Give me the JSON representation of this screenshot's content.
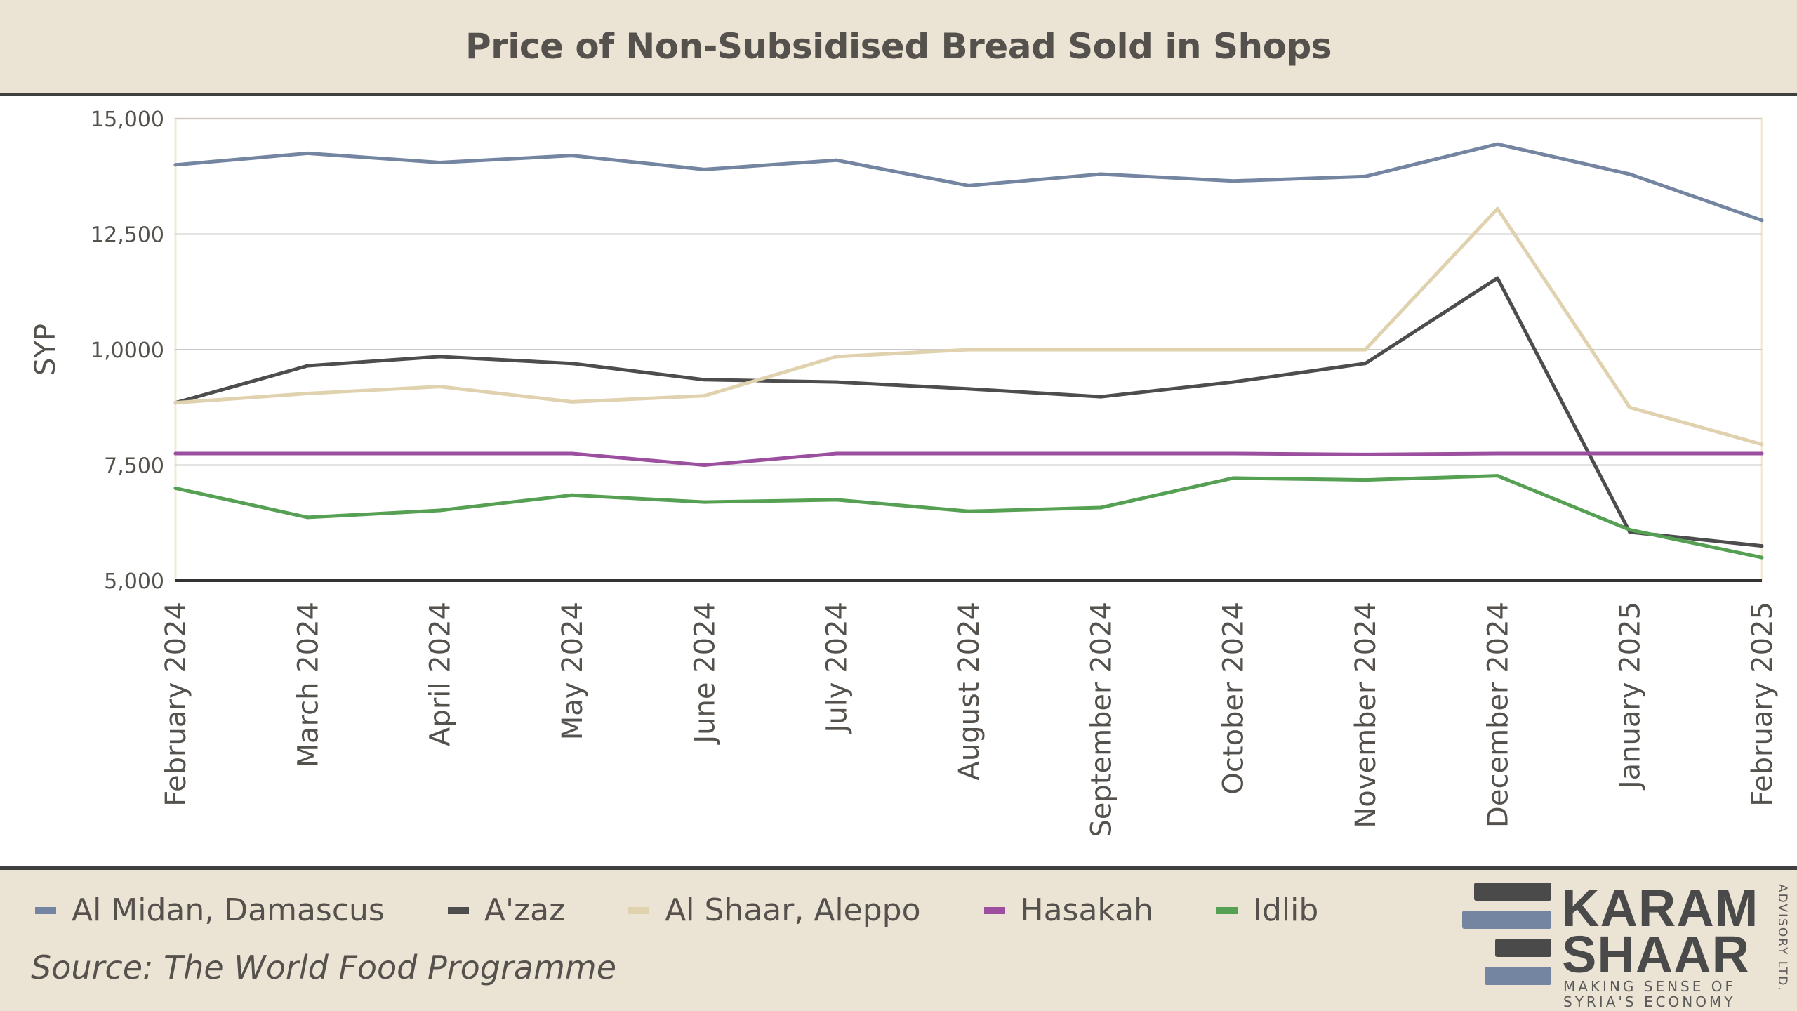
{
  "header": {
    "title": "Price of Non-Subsidised Bread Sold in Shops"
  },
  "chart_data": {
    "type": "line",
    "title": "Price of Non-Subsidised Bread Sold in Shops",
    "xlabel": "",
    "ylabel": "SYP",
    "ylim": [
      5000,
      15000
    ],
    "y_ticks": [
      5000,
      7500,
      10000,
      12500,
      15000
    ],
    "y_tick_labels": [
      "5,000",
      "7,500",
      "1,0000",
      "12,500",
      "15,000"
    ],
    "grid": true,
    "legend_position": "bottom",
    "categories": [
      "February 2024",
      "March 2024",
      "April 2024",
      "May 2024",
      "June 2024",
      "July 2024",
      "August 2024",
      "September 2024",
      "October 2024",
      "November 2024",
      "December 2024",
      "January 2025",
      "February 2025"
    ],
    "series": [
      {
        "name": "Al Midan, Damascus",
        "color": "#7485a1",
        "values": [
          14000,
          14250,
          14050,
          14200,
          13900,
          14100,
          13550,
          13800,
          13650,
          13750,
          14450,
          13800,
          12800
        ]
      },
      {
        "name": "A'zaz",
        "color": "#4d4d4d",
        "values": [
          8850,
          9650,
          9850,
          9700,
          9350,
          9300,
          9150,
          8980,
          9300,
          9700,
          11550,
          6050,
          5750
        ]
      },
      {
        "name": "Al Shaar, Aleppo",
        "color": "#e0d2ae",
        "values": [
          8850,
          9050,
          9200,
          8870,
          9000,
          9850,
          10000,
          10000,
          10000,
          10000,
          13050,
          8750,
          7950
        ]
      },
      {
        "name": "Hasakah",
        "color": "#9b4f9e",
        "values": [
          7750,
          7750,
          7750,
          7750,
          7500,
          7750,
          7750,
          7750,
          7750,
          7730,
          7750,
          7750,
          7750
        ]
      },
      {
        "name": "Idlib",
        "color": "#55a052",
        "values": [
          7000,
          6370,
          6520,
          6850,
          6700,
          6750,
          6500,
          6580,
          7220,
          7180,
          7270,
          6100,
          5500
        ]
      }
    ]
  },
  "footer": {
    "source": "Source: The World Food Programme"
  },
  "logo": {
    "line1": "KARAM",
    "line2": "SHAAR",
    "tagline1": "MAKING SENSE OF",
    "tagline2": "SYRIA'S ECONOMY",
    "side": "ADVISORY LTD.",
    "colors": {
      "dark": "#4a4a4a",
      "blue": "#7485a1"
    }
  }
}
